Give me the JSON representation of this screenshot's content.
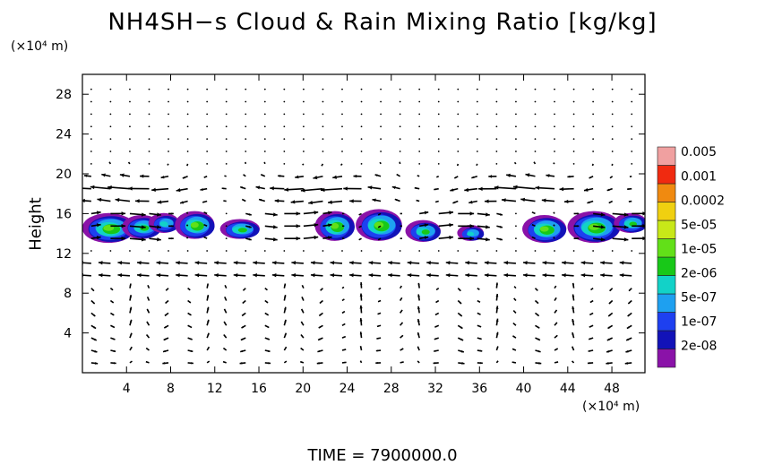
{
  "title": "NH4SH−s Cloud & Rain Mixing Ratio [kg/kg]",
  "ylabel": "Height",
  "y_unit": "(×10⁴ m)",
  "x_unit": "(×10⁴ m)",
  "time_label": "TIME = 7900000.0",
  "colors": {
    "scale": [
      "#8a12a8",
      "#1212b8",
      "#1e40f0",
      "#1ea0f0",
      "#12d2c8",
      "#18c818",
      "#62e018",
      "#c8e818",
      "#f0d010",
      "#f08a10",
      "#f02a10",
      "#f0a0a0"
    ]
  },
  "chart_data": {
    "type": "heatmap",
    "title": "NH4SH−s Cloud & Rain Mixing Ratio [kg/kg]",
    "xlabel": "",
    "ylabel": "Height",
    "xlim": [
      0,
      51
    ],
    "ylim": [
      0,
      30
    ],
    "x_ticks": [
      "4",
      "8",
      "12",
      "16",
      "20",
      "24",
      "28",
      "32",
      "36",
      "40",
      "44",
      "48"
    ],
    "y_ticks": [
      "4",
      "8",
      "12",
      "16",
      "20",
      "24",
      "28"
    ],
    "legend_levels": [
      "2e-08",
      "1e-07",
      "5e-07",
      "2e-06",
      "1e-05",
      "5e-05",
      "0.0002",
      "0.001",
      "0.005"
    ],
    "cloud_layer": {
      "y_min": 13,
      "y_max": 16.5
    },
    "cloud_cells": [
      {
        "x": 2.5,
        "y": 14.5,
        "rx": 2.4,
        "ry": 1.5,
        "peak": 6
      },
      {
        "x": 5.5,
        "y": 14.6,
        "rx": 1.8,
        "ry": 1.2,
        "peak": 5
      },
      {
        "x": 7.5,
        "y": 15.0,
        "rx": 1.4,
        "ry": 1.0,
        "peak": 4
      },
      {
        "x": 10.3,
        "y": 14.8,
        "rx": 1.8,
        "ry": 1.4,
        "peak": 6
      },
      {
        "x": 14.4,
        "y": 14.4,
        "rx": 1.8,
        "ry": 1.0,
        "peak": 5
      },
      {
        "x": 23.0,
        "y": 14.7,
        "rx": 1.8,
        "ry": 1.5,
        "peak": 6
      },
      {
        "x": 27.0,
        "y": 14.8,
        "rx": 2.1,
        "ry": 1.6,
        "peak": 6
      },
      {
        "x": 31.0,
        "y": 14.2,
        "rx": 1.6,
        "ry": 1.1,
        "peak": 5
      },
      {
        "x": 35.3,
        "y": 14.0,
        "rx": 1.2,
        "ry": 0.8,
        "peak": 4
      },
      {
        "x": 42.0,
        "y": 14.4,
        "rx": 2.0,
        "ry": 1.4,
        "peak": 6
      },
      {
        "x": 46.5,
        "y": 14.6,
        "rx": 2.4,
        "ry": 1.6,
        "peak": 6
      },
      {
        "x": 49.8,
        "y": 15.0,
        "rx": 1.5,
        "ry": 1.0,
        "peak": 5
      }
    ]
  }
}
